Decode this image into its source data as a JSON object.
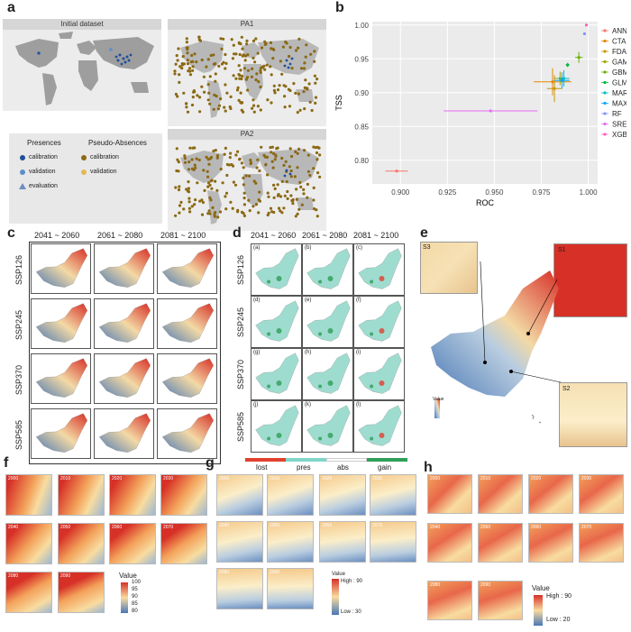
{
  "labels": {
    "a": "a",
    "b": "b",
    "c": "c",
    "d": "d",
    "e": "e",
    "f": "f",
    "g": "g",
    "h": "h"
  },
  "panel_a": {
    "map1_title": "Initial dataset",
    "map2_title": "PA1",
    "map3_title": "PA2",
    "legend": {
      "presences_title": "Presences",
      "pseudo_title": "Pseudo-Absences",
      "presences": [
        "calibration",
        "validation",
        "evaluation"
      ],
      "pseudo": [
        "calibration",
        "validation"
      ]
    },
    "colors": {
      "land": "#9e9e9e",
      "ocean": "#ececec",
      "calib": "#1f4e9c",
      "valid": "#5b8fc9",
      "pa_calib": "#8b6914",
      "pa_valid": "#e3b955"
    }
  },
  "panel_b": {
    "chart_data": {
      "type": "scatter",
      "xlabel": "ROC",
      "ylabel": "TSS",
      "xlim": [
        0.885,
        1.005
      ],
      "ylim": [
        0.765,
        1.005
      ],
      "xticks": [
        "0.900",
        "0.925",
        "0.950",
        "0.975",
        "1.000"
      ],
      "yticks": [
        "0.80",
        "0.85",
        "0.90",
        "0.95",
        "1.00"
      ],
      "series": [
        {
          "name": "ANN",
          "color": "#f8766d",
          "x": 0.898,
          "y": 0.784,
          "xerr": 0.006,
          "yerr": 0.0
        },
        {
          "name": "CTA",
          "color": "#e58700",
          "x": 0.981,
          "y": 0.916,
          "xerr": 0.01,
          "yerr": 0.02
        },
        {
          "name": "FDA",
          "color": "#c99800",
          "x": 0.982,
          "y": 0.906,
          "xerr": 0.004,
          "yerr": 0.02
        },
        {
          "name": "GAM",
          "color": "#a3a500",
          "x": 0.985,
          "y": 0.921,
          "xerr": 0.003,
          "yerr": 0.01
        },
        {
          "name": "GBM",
          "color": "#6bb100",
          "x": 0.995,
          "y": 0.952,
          "xerr": 0.002,
          "yerr": 0.008
        },
        {
          "name": "GLM",
          "color": "#00ba38",
          "x": 0.989,
          "y": 0.941,
          "xerr": 0.001,
          "yerr": 0.003
        },
        {
          "name": "MARS",
          "color": "#00bfc4",
          "x": 0.987,
          "y": 0.921,
          "xerr": 0.003,
          "yerr": 0.012
        },
        {
          "name": "MAXNET",
          "color": "#00a9ff",
          "x": 0.986,
          "y": 0.918,
          "xerr": 0.004,
          "yerr": 0.012
        },
        {
          "name": "RF",
          "color": "#8494ff",
          "x": 0.998,
          "y": 0.987,
          "xerr": 0.0,
          "yerr": 0.0
        },
        {
          "name": "SRE",
          "color": "#e76bf3",
          "x": 0.948,
          "y": 0.873,
          "xerr": 0.025,
          "yerr": 0.0
        },
        {
          "name": "XGBOOST",
          "color": "#ff62bc",
          "x": 0.999,
          "y": 1.0,
          "xerr": 0.0,
          "yerr": 0.0
        }
      ]
    }
  },
  "panel_c": {
    "cols": [
      "2041 ~ 2060",
      "2061 ~ 2080",
      "2081 ~ 2100"
    ],
    "rows": [
      "SSP126",
      "SSP245",
      "SSP370",
      "SSP585"
    ]
  },
  "panel_d": {
    "cols": [
      "2041 ~ 2060",
      "2061 ~ 2080",
      "2081 ~ 2100"
    ],
    "rows": [
      "SSP126",
      "SSP245",
      "SSP370",
      "SSP585"
    ],
    "tags": [
      "(a)",
      "(b)",
      "(c)",
      "(d)",
      "(e)",
      "(f)",
      "(g)",
      "(h)",
      "(i)",
      "(j)",
      "(k)",
      "(l)"
    ],
    "legend": [
      {
        "label": "lost",
        "color": "#e04030"
      },
      {
        "label": "pres",
        "color": "#7fd6c8"
      },
      {
        "label": "abs",
        "color": "#ffffff"
      },
      {
        "label": "gain",
        "color": "#2e9e58"
      }
    ]
  },
  "panel_e": {
    "s1": "S1",
    "s2": "S2",
    "s3": "S3",
    "value_title": "Value"
  },
  "panel_f": {
    "years": [
      "2000",
      "2010",
      "2020",
      "2030",
      "2040",
      "2050",
      "2060",
      "2070",
      "2080",
      "2090"
    ],
    "legend_title": "Value",
    "legend_ticks": [
      "100",
      "95",
      "90",
      "85",
      "80"
    ]
  },
  "panel_g": {
    "years": [
      "2000",
      "2010",
      "2020",
      "2030",
      "2040",
      "2050",
      "2060",
      "2070",
      "2080",
      "2090"
    ],
    "legend_title": "Value",
    "legend_high": "High : 90",
    "legend_low": "Low : 30"
  },
  "panel_h": {
    "years": [
      "2000",
      "2010",
      "2020",
      "2030",
      "2040",
      "2050",
      "2060",
      "2070",
      "2080",
      "2090"
    ],
    "legend_title": "Value",
    "legend_high": "High : 90",
    "legend_low": "Low : 20"
  }
}
